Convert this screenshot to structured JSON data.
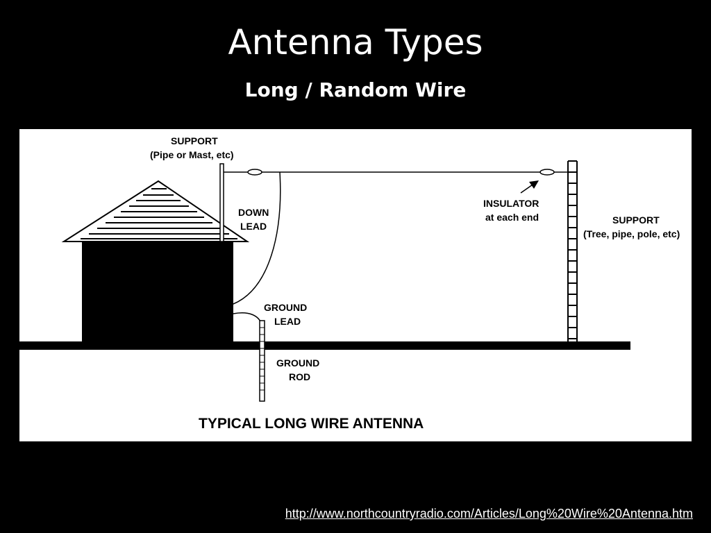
{
  "slide": {
    "title": "Antenna Types",
    "subtitle": "Long / Random Wire"
  },
  "diagram": {
    "labels": {
      "support_mast_line1": "SUPPORT",
      "support_mast_line2": "(Pipe or Mast, etc)",
      "down_lead_line1": "DOWN",
      "down_lead_line2": "LEAD",
      "insulator_line1": "INSULATOR",
      "insulator_line2": "at each end",
      "support_tree_line1": "SUPPORT",
      "support_tree_line2": "(Tree, pipe, pole, etc)",
      "ground_lead_line1": "GROUND",
      "ground_lead_line2": "LEAD",
      "ground_rod_line1": "GROUND",
      "ground_rod_line2": "ROD"
    },
    "caption": "TYPICAL LONG WIRE ANTENNA"
  },
  "source": {
    "url": "http://www.northcountryradio.com/Articles/Long%20Wire%20Antenna.htm"
  },
  "colors": {
    "background": "#000000",
    "text": "#ffffff",
    "panel": "#ffffff",
    "ink": "#000000"
  }
}
